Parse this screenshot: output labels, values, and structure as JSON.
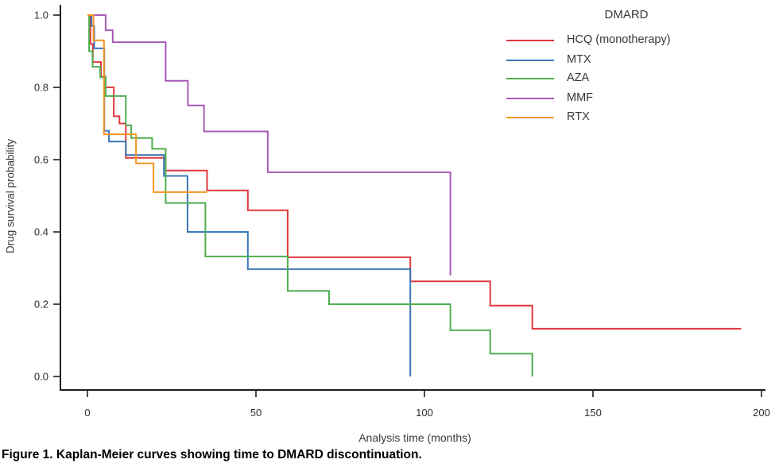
{
  "figure": {
    "y_label": "Drug survival probability",
    "x_label": "Analysis time (months)",
    "caption": "Figure 1. Kaplan-Meier curves showing time to DMARD discontinuation."
  },
  "legend": {
    "title": "DMARD"
  },
  "chart_data": {
    "type": "line",
    "subtype": "kaplan-meier-step",
    "xlabel": "Analysis time (months)",
    "ylabel": "Drug survival probability",
    "xlim": [
      0,
      200
    ],
    "ylim": [
      0.0,
      1.0
    ],
    "x_ticks": [
      0,
      50,
      100,
      150,
      200
    ],
    "x_tick_labels": [
      "0",
      "50",
      "100",
      "150",
      "200"
    ],
    "y_ticks": [
      0.0,
      0.2,
      0.4,
      0.6,
      0.8,
      1.0
    ],
    "y_tick_labels": [
      "0.0",
      "0.2",
      "0.4",
      "0.6",
      "0.8",
      "1.0"
    ],
    "grid": false,
    "legend_position": "top-right",
    "legend_title": "DMARD",
    "axis_color": "#1f1f1f",
    "tick_text_color": "#2d2d35",
    "series": [
      {
        "name": "HCQ (monotherapy)",
        "color": "#e0383e",
        "points": [
          [
            0,
            1.0
          ],
          [
            0.9,
            0.92
          ],
          [
            1.6,
            0.87
          ],
          [
            4,
            0.83
          ],
          [
            5.4,
            0.8
          ],
          [
            7.8,
            0.72
          ],
          [
            9.5,
            0.7
          ],
          [
            11.4,
            0.605
          ],
          [
            23.2,
            0.57
          ],
          [
            35.5,
            0.515
          ],
          [
            47.6,
            0.46
          ],
          [
            59.4,
            0.33
          ],
          [
            95.8,
            0.263
          ],
          [
            119.5,
            0.196
          ],
          [
            132,
            0.132
          ],
          [
            194,
            0.132
          ]
        ]
      },
      {
        "name": "MTX",
        "color": "#3a77b8",
        "points": [
          [
            0,
            1.0
          ],
          [
            1.2,
            0.97
          ],
          [
            2,
            0.908
          ],
          [
            5,
            0.68
          ],
          [
            6.4,
            0.65
          ],
          [
            11.4,
            0.613
          ],
          [
            22.7,
            0.555
          ],
          [
            29.7,
            0.4
          ],
          [
            47.6,
            0.297
          ],
          [
            95.8,
            0.0
          ]
        ]
      },
      {
        "name": "AZA",
        "color": "#4fae4f",
        "points": [
          [
            0,
            1.0
          ],
          [
            0.5,
            0.9
          ],
          [
            1.5,
            0.857
          ],
          [
            3.8,
            0.828
          ],
          [
            5.4,
            0.776
          ],
          [
            11.4,
            0.695
          ],
          [
            13,
            0.66
          ],
          [
            19.2,
            0.63
          ],
          [
            23.2,
            0.48
          ],
          [
            35,
            0.332
          ],
          [
            59.4,
            0.237
          ],
          [
            71.7,
            0.2
          ],
          [
            107.7,
            0.128
          ],
          [
            119.5,
            0.063
          ],
          [
            132,
            0.0
          ]
        ]
      },
      {
        "name": "MMF",
        "color": "#a65ab5",
        "points": [
          [
            0,
            1.0
          ],
          [
            5.4,
            0.958
          ],
          [
            7.5,
            0.925
          ],
          [
            23.2,
            0.818
          ],
          [
            29.8,
            0.75
          ],
          [
            34.6,
            0.678
          ],
          [
            53.5,
            0.565
          ],
          [
            107.7,
            0.28
          ]
        ]
      },
      {
        "name": "RTX",
        "color": "#f79420",
        "points": [
          [
            0,
            1.0
          ],
          [
            1.8,
            0.93
          ],
          [
            4.9,
            0.67
          ],
          [
            14.4,
            0.59
          ],
          [
            19.6,
            0.51
          ],
          [
            35.5,
            0.51
          ]
        ]
      }
    ]
  }
}
